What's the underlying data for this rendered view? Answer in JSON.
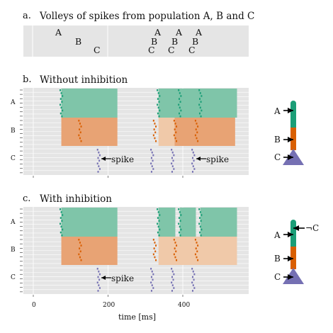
{
  "panels": {
    "a": {
      "label": "a.",
      "title": "Volleys of spikes from population A, B and C",
      "volley1": {
        "A": "A",
        "B": "B",
        "C": "C"
      },
      "volley2": {
        "A1": "A",
        "A2": "A",
        "A3": "A",
        "B1": "B",
        "B2": "B",
        "B3": "B",
        "C1": "C",
        "C2": "C",
        "C3": "C"
      }
    },
    "b": {
      "label": "b.",
      "title": "Without inhibition",
      "annotation": "spike",
      "annotation2": "spike"
    },
    "c": {
      "label": "c.",
      "title": "With inhibition",
      "annotation": "spike"
    }
  },
  "y_ticks": [
    "A",
    "B",
    "C"
  ],
  "x_axis": {
    "ticks": [
      "0",
      "200",
      "400"
    ],
    "label": "time [ms]"
  },
  "neuron_b": {
    "A": "A",
    "B": "B",
    "C": "C"
  },
  "neuron_c": {
    "A": "A",
    "B": "B",
    "C": "C",
    "notC": "¬C"
  },
  "colors": {
    "A": "#1b9e77",
    "B": "#d95f02",
    "C": "#7570b3",
    "A_fill": "#7fc5a9",
    "B_fill": "#e8a374",
    "B_fill_light": "#f0c9a9",
    "bg": "#e5e5e5"
  }
}
